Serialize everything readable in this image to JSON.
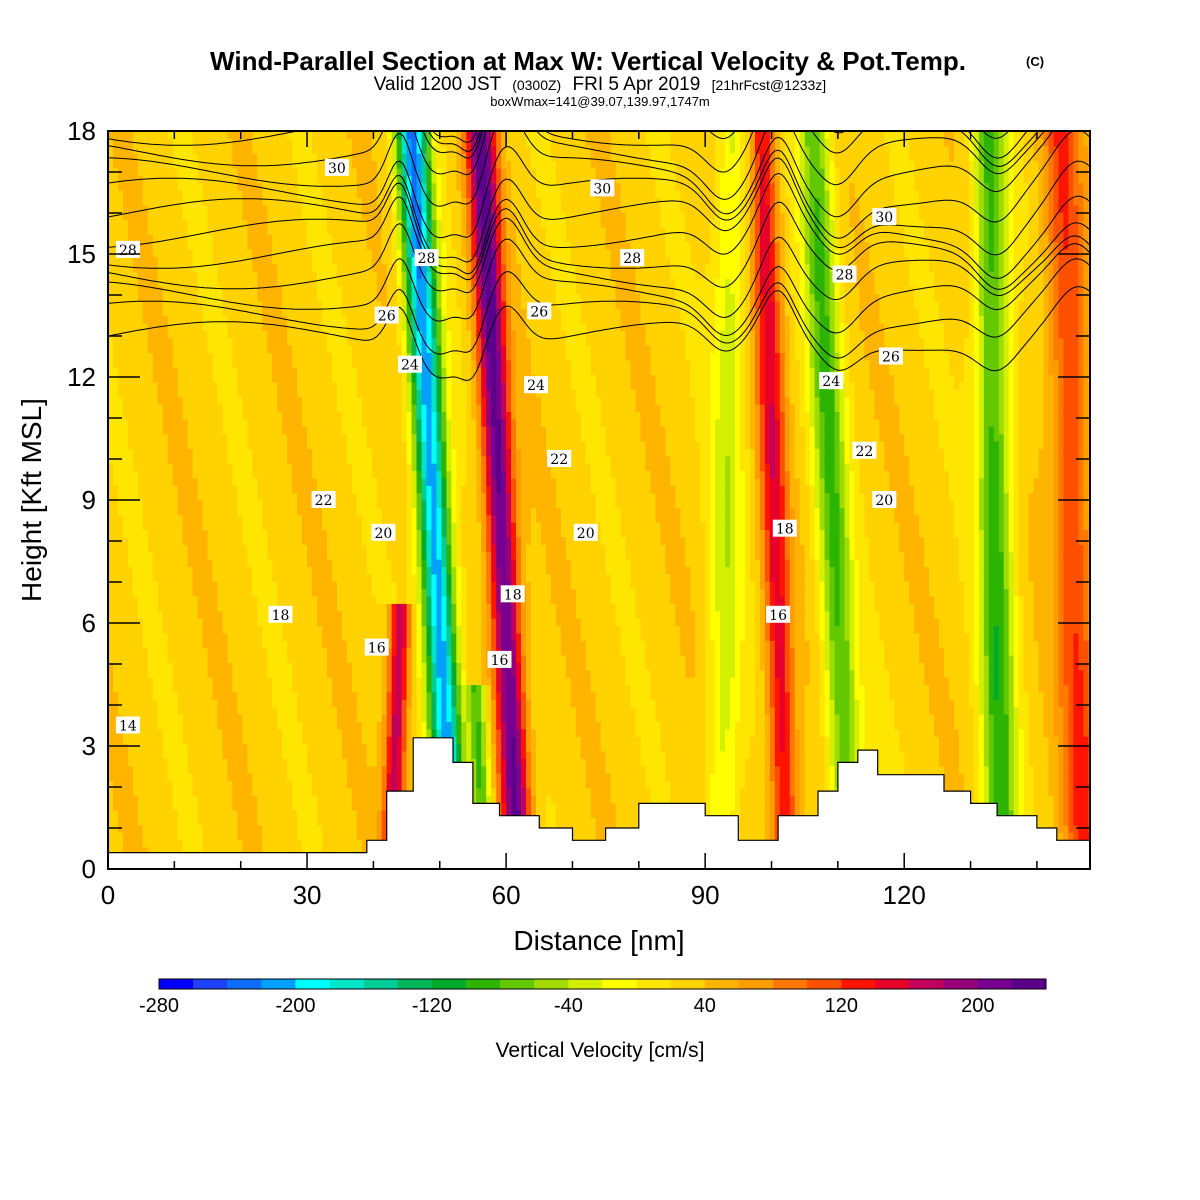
{
  "header": {
    "title": "Wind-Parallel Section at Max W: Vertical Velocity & Pot.Temp.",
    "copyright": "(C)",
    "valid_prefix": "Valid 1200 JST",
    "valid_zulu": "(0300Z)",
    "valid_date": "FRI 5 Apr 2019",
    "forecast": "[21hrFcst@1233z]",
    "box_info": "boxWmax=141@39.07,139.97,1747m"
  },
  "chart_data": {
    "type": "heatmap",
    "xlabel": "Distance [nm]",
    "ylabel": "Height [Kft MSL]",
    "xlim": [
      0,
      148
    ],
    "ylim": [
      0,
      18
    ],
    "x_ticks": [
      0,
      30,
      60,
      90,
      120
    ],
    "y_ticks": [
      0,
      3,
      6,
      9,
      12,
      15,
      18
    ],
    "colorbar": {
      "title": "Vertical Velocity [cm/s]",
      "tick_labels": [
        -280,
        -200,
        -120,
        -40,
        40,
        120,
        200
      ],
      "min": -280,
      "max": 240,
      "step": 20,
      "colors": [
        "#0000ff",
        "#1e40ff",
        "#0c6eff",
        "#00a0ff",
        "#00ffff",
        "#00e4c8",
        "#00cc96",
        "#00b45a",
        "#00aa2a",
        "#2db400",
        "#64c800",
        "#a0dc00",
        "#d2f000",
        "#ffff00",
        "#ffe600",
        "#ffd200",
        "#ffb400",
        "#ff9c00",
        "#ff7800",
        "#ff5000",
        "#ff1400",
        "#e6002a",
        "#c0005a",
        "#960078",
        "#780090",
        "#5a008c"
      ]
    },
    "velocity_field": {
      "background_value": 30,
      "features": [
        {
          "x": 50,
          "value": -250,
          "width": 2.4,
          "tilt": -0.35,
          "ztop": 18
        },
        {
          "x": 60,
          "value": 200,
          "width": 2.2,
          "tilt": -0.32,
          "ztop": 18
        },
        {
          "x": 44,
          "value": 150,
          "width": 1.6,
          "tilt": 0.2,
          "ztop": 6
        },
        {
          "x": 55,
          "value": -120,
          "width": 1.5,
          "tilt": -0.3,
          "ztop": 4
        },
        {
          "x": 93,
          "value": -60,
          "width": 2.5,
          "tilt": 0.1,
          "ztop": 18
        },
        {
          "x": 101,
          "value": 120,
          "width": 2.0,
          "tilt": -0.2,
          "ztop": 18
        },
        {
          "x": 110,
          "value": -110,
          "width": 2.5,
          "tilt": -0.3,
          "ztop": 18
        },
        {
          "x": 134,
          "value": -120,
          "width": 2.6,
          "tilt": -0.1,
          "ztop": 18
        },
        {
          "x": 146,
          "value": 90,
          "width": 3.0,
          "tilt": -0.2,
          "ztop": 18
        }
      ]
    },
    "terrain": {
      "x": [
        0,
        39,
        39,
        42,
        42,
        46,
        46,
        52,
        52,
        55,
        55,
        59,
        59,
        65,
        65,
        70,
        70,
        75,
        75,
        80,
        80,
        90,
        90,
        95,
        95,
        101,
        101,
        107,
        107,
        110,
        110,
        113,
        113,
        116,
        116,
        126,
        126,
        130,
        130,
        134,
        134,
        140,
        140,
        143,
        143,
        148
      ],
      "height": [
        0.4,
        0.4,
        0.7,
        0.7,
        1.9,
        1.9,
        3.2,
        3.2,
        2.6,
        2.6,
        1.6,
        1.6,
        1.3,
        1.3,
        1.0,
        1.0,
        0.7,
        0.7,
        1.0,
        1.0,
        1.6,
        1.6,
        1.3,
        1.3,
        0.7,
        0.7,
        1.3,
        1.3,
        1.9,
        1.9,
        2.6,
        2.6,
        2.9,
        2.9,
        2.3,
        2.3,
        1.9,
        1.9,
        1.6,
        1.6,
        1.3,
        1.3,
        1.0,
        1.0,
        0.7,
        0.7
      ]
    },
    "contours": {
      "series_name": "Pot.Temp.",
      "level_start": 13,
      "level_step": 0.5,
      "level_count": 38,
      "labels": [
        {
          "text": "30",
          "x": 34.5,
          "y": 17.1
        },
        {
          "text": "30",
          "x": 74.5,
          "y": 16.6
        },
        {
          "text": "30",
          "x": 117,
          "y": 15.9
        },
        {
          "text": "28",
          "x": 3,
          "y": 15.1
        },
        {
          "text": "28",
          "x": 48,
          "y": 14.9
        },
        {
          "text": "28",
          "x": 79,
          "y": 14.9
        },
        {
          "text": "28",
          "x": 111,
          "y": 14.5
        },
        {
          "text": "26",
          "x": 42,
          "y": 13.5
        },
        {
          "text": "26",
          "x": 65,
          "y": 13.6
        },
        {
          "text": "26",
          "x": 118,
          "y": 12.5
        },
        {
          "text": "24",
          "x": 45.5,
          "y": 12.3
        },
        {
          "text": "24",
          "x": 64.5,
          "y": 11.8
        },
        {
          "text": "24",
          "x": 109,
          "y": 11.9
        },
        {
          "text": "22",
          "x": 32.5,
          "y": 9.0
        },
        {
          "text": "22",
          "x": 68,
          "y": 10.0
        },
        {
          "text": "22",
          "x": 114,
          "y": 10.2
        },
        {
          "text": "20",
          "x": 41.5,
          "y": 8.2
        },
        {
          "text": "20",
          "x": 72,
          "y": 8.2
        },
        {
          "text": "20",
          "x": 117,
          "y": 9.0
        },
        {
          "text": "18",
          "x": 26,
          "y": 6.2
        },
        {
          "text": "18",
          "x": 61,
          "y": 6.7
        },
        {
          "text": "18",
          "x": 102,
          "y": 8.3
        },
        {
          "text": "16",
          "x": 40.5,
          "y": 5.4
        },
        {
          "text": "16",
          "x": 59,
          "y": 5.1
        },
        {
          "text": "16",
          "x": 101,
          "y": 6.2
        },
        {
          "text": "14",
          "x": 3,
          "y": 3.5
        }
      ]
    }
  }
}
